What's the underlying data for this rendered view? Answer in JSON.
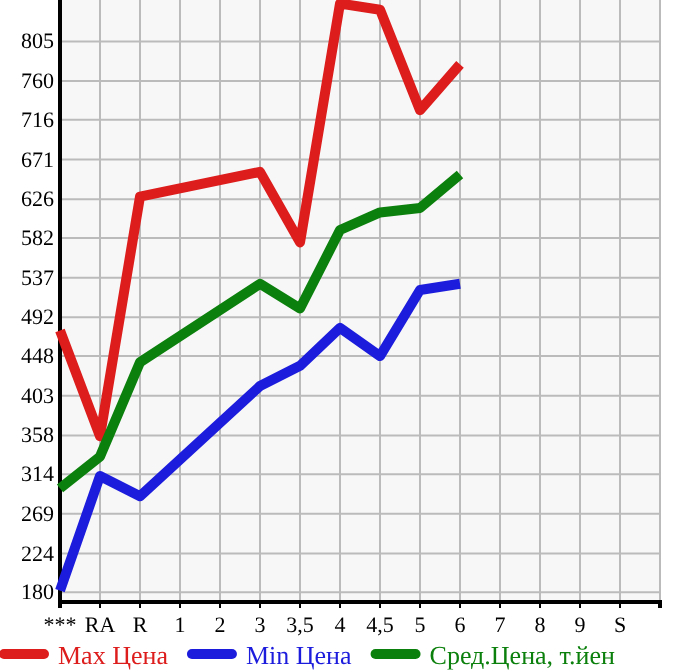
{
  "chart_data": {
    "type": "line",
    "categories": [
      "***",
      "RA",
      "R",
      "1",
      "2",
      "3",
      "3,5",
      "4",
      "4,5",
      "5",
      "6",
      "7",
      "8",
      "9",
      "S"
    ],
    "ylim": [
      169,
      852
    ],
    "yticks": [
      180,
      224,
      269,
      314,
      358,
      403,
      448,
      492,
      537,
      582,
      626,
      671,
      716,
      760,
      805
    ],
    "grid": true,
    "legend": "bottom",
    "marker": "none",
    "line_style": "solid",
    "series": [
      {
        "name": "Max Цена",
        "color": "#dd1c1c",
        "values": [
          477,
          357,
          629,
          null,
          null,
          657,
          577,
          848,
          841,
          727,
          779,
          null,
          null,
          null,
          null
        ]
      },
      {
        "name": "Min Цена",
        "color": "#1c1cdd",
        "values": [
          182,
          312,
          289,
          null,
          null,
          414,
          437,
          480,
          448,
          523,
          530,
          null,
          null,
          null,
          null
        ]
      },
      {
        "name": "Сред.Цена, т.йен",
        "color": "#0c800c",
        "values": [
          298,
          334,
          441,
          null,
          null,
          530,
          502,
          591,
          611,
          616,
          654,
          null,
          null,
          null,
          null
        ]
      }
    ]
  }
}
